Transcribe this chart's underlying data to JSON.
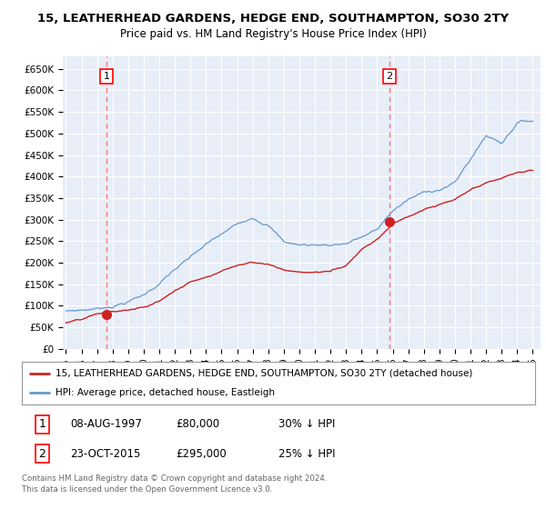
{
  "title": "15, LEATHERHEAD GARDENS, HEDGE END, SOUTHAMPTON, SO30 2TY",
  "subtitle": "Price paid vs. HM Land Registry's House Price Index (HPI)",
  "ylim": [
    0,
    680000
  ],
  "yticks": [
    0,
    50000,
    100000,
    150000,
    200000,
    250000,
    300000,
    350000,
    400000,
    450000,
    500000,
    550000,
    600000,
    650000
  ],
  "ytick_labels": [
    "£0",
    "£50K",
    "£100K",
    "£150K",
    "£200K",
    "£250K",
    "£300K",
    "£350K",
    "£400K",
    "£450K",
    "£500K",
    "£550K",
    "£600K",
    "£650K"
  ],
  "background_color": "#e8eef8",
  "grid_color": "#ffffff",
  "hpi_color": "#6699cc",
  "price_color": "#cc2222",
  "vline_color": "#ff7777",
  "purchase1_date": 1997.6,
  "purchase1_price": 80000,
  "purchase2_date": 2015.8,
  "purchase2_price": 295000,
  "legend_label_price": "15, LEATHERHEAD GARDENS, HEDGE END, SOUTHAMPTON, SO30 2TY (detached house)",
  "legend_label_hpi": "HPI: Average price, detached house, Eastleigh",
  "table_row1": [
    "1",
    "08-AUG-1997",
    "£80,000",
    "30% ↓ HPI"
  ],
  "table_row2": [
    "2",
    "23-OCT-2015",
    "£295,000",
    "25% ↓ HPI"
  ],
  "footer": "Contains HM Land Registry data © Crown copyright and database right 2024.\nThis data is licensed under the Open Government Licence v3.0."
}
